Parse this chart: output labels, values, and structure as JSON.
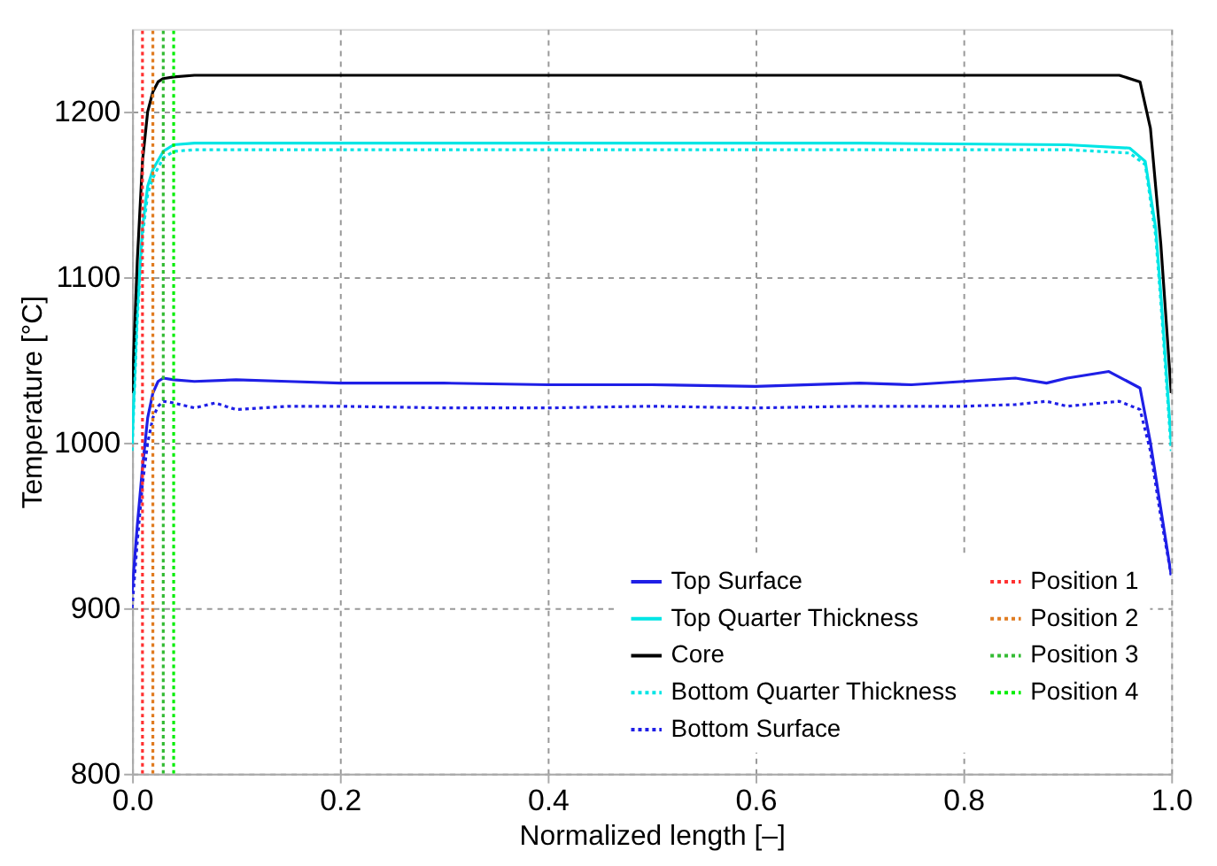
{
  "chart_data": {
    "type": "line",
    "xlabel": "Normalized length [–]",
    "ylabel": "Temperature [°C]",
    "xlim": [
      0,
      1
    ],
    "ylim": [
      800,
      1250
    ],
    "xticks": [
      {
        "value": 0,
        "label": "0.0"
      },
      {
        "value": 0.2,
        "label": "0.2"
      },
      {
        "value": 0.4,
        "label": "0.4"
      },
      {
        "value": 0.6,
        "label": "0.6"
      },
      {
        "value": 0.8,
        "label": "0.8"
      },
      {
        "value": 1,
        "label": "1.0"
      }
    ],
    "yticks": [
      800,
      900,
      1000,
      1100,
      1200
    ],
    "grid": true,
    "legend": "bottom right",
    "marker": "none",
    "series": [
      {
        "name": "Top Surface",
        "color": "#1f1fe6",
        "line_style": "solid",
        "x": [
          0,
          0.005,
          0.01,
          0.015,
          0.02,
          0.025,
          0.03,
          0.04,
          0.06,
          0.1,
          0.15,
          0.2,
          0.3,
          0.4,
          0.5,
          0.6,
          0.7,
          0.75,
          0.8,
          0.85,
          0.88,
          0.9,
          0.94,
          0.97,
          0.98,
          0.99,
          1.0
        ],
        "values": [
          910,
          950,
          985,
          1015,
          1030,
          1037,
          1039,
          1038,
          1037,
          1038,
          1037,
          1036,
          1036,
          1035,
          1035,
          1034,
          1036,
          1035,
          1037,
          1039,
          1036,
          1039,
          1043,
          1033,
          1000,
          960,
          920
        ]
      },
      {
        "name": "Top Quarter Thickness",
        "color": "#00e5e5",
        "line_style": "solid",
        "x": [
          0,
          0.005,
          0.01,
          0.015,
          0.02,
          0.03,
          0.04,
          0.06,
          0.1,
          0.3,
          0.5,
          0.7,
          0.9,
          0.96,
          0.975,
          0.985,
          0.99,
          1.0
        ],
        "values": [
          1000,
          1080,
          1130,
          1155,
          1165,
          1176,
          1180,
          1181,
          1181,
          1181,
          1181,
          1181,
          1180,
          1178,
          1170,
          1130,
          1090,
          1000
        ]
      },
      {
        "name": "Core",
        "color": "#000000",
        "line_style": "solid",
        "x": [
          0,
          0.005,
          0.01,
          0.015,
          0.02,
          0.025,
          0.03,
          0.04,
          0.06,
          0.1,
          0.3,
          0.5,
          0.7,
          0.9,
          0.95,
          0.97,
          0.98,
          0.99,
          1.0
        ],
        "values": [
          1030,
          1110,
          1170,
          1200,
          1212,
          1218,
          1220,
          1221,
          1222,
          1222,
          1222,
          1222,
          1222,
          1222,
          1222,
          1218,
          1190,
          1120,
          1030
        ]
      },
      {
        "name": "Bottom Quarter Thickness",
        "color": "#00e5e5",
        "line_style": "dotted",
        "x": [
          0,
          0.005,
          0.01,
          0.015,
          0.02,
          0.03,
          0.04,
          0.06,
          0.1,
          0.3,
          0.5,
          0.7,
          0.9,
          0.96,
          0.975,
          0.985,
          0.99,
          1.0
        ],
        "values": [
          995,
          1075,
          1125,
          1150,
          1160,
          1172,
          1176,
          1177,
          1177,
          1177,
          1177,
          1177,
          1177,
          1175,
          1168,
          1125,
          1085,
          995
        ]
      },
      {
        "name": "Bottom Surface",
        "color": "#1f1fe6",
        "line_style": "dotted",
        "x": [
          0,
          0.005,
          0.01,
          0.015,
          0.02,
          0.025,
          0.03,
          0.04,
          0.06,
          0.08,
          0.1,
          0.15,
          0.2,
          0.3,
          0.4,
          0.5,
          0.6,
          0.7,
          0.8,
          0.85,
          0.88,
          0.9,
          0.95,
          0.97,
          0.98,
          0.99,
          1.0
        ],
        "values": [
          900,
          940,
          975,
          1000,
          1015,
          1022,
          1025,
          1024,
          1021,
          1024,
          1020,
          1022,
          1022,
          1021,
          1021,
          1022,
          1021,
          1022,
          1022,
          1023,
          1025,
          1022,
          1025,
          1020,
          995,
          955,
          920
        ]
      },
      {
        "name": "Position 1",
        "color": "#ff3030",
        "line_style": "dotted",
        "x": [
          0.01,
          0.01
        ],
        "values": [
          800,
          1250
        ]
      },
      {
        "name": "Position 2",
        "color": "#e07b20",
        "line_style": "dotted",
        "x": [
          0.02,
          0.02
        ],
        "values": [
          800,
          1250
        ]
      },
      {
        "name": "Position 3",
        "color": "#33bb33",
        "line_style": "dotted",
        "x": [
          0.03,
          0.03
        ],
        "values": [
          800,
          1250
        ]
      },
      {
        "name": "Position 4",
        "color": "#00ee00",
        "line_style": "dotted",
        "x": [
          0.04,
          0.04
        ],
        "values": [
          800,
          1250
        ]
      }
    ]
  }
}
